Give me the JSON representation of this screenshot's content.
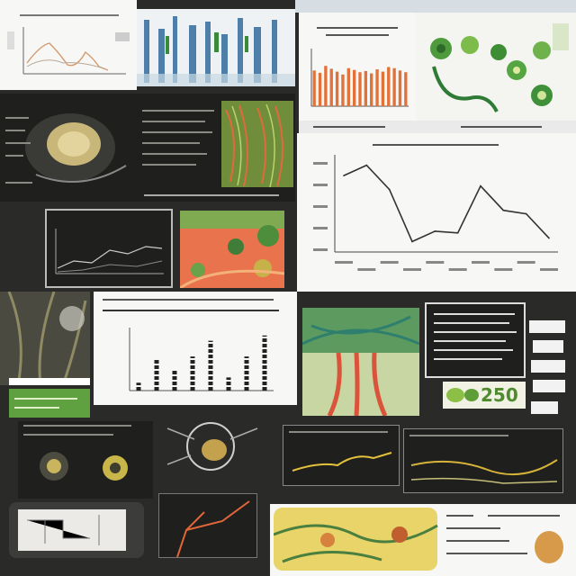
{
  "texts": {
    "top_left_caption": "",
    "center_title": "",
    "line_chart_title": "",
    "bar_panel_caption": "",
    "olive_badge_number": "250"
  },
  "colors": {
    "background": "#2a2a28",
    "line_stroke": "#333333",
    "bar_orange": "#e0723a",
    "olive_green": "#8bbf45"
  },
  "chart_data": [
    {
      "type": "line",
      "title": "",
      "xlabel": "",
      "ylabel": "",
      "x": [
        1,
        2,
        3,
        4,
        5,
        6,
        7,
        8,
        9,
        10
      ],
      "y": [
        300,
        330,
        260,
        110,
        140,
        135,
        270,
        200,
        190,
        120
      ],
      "ylim": [
        80,
        360
      ],
      "grid": false
    },
    {
      "type": "bar",
      "title": "",
      "values": [
        62,
        58,
        70,
        65,
        60,
        55,
        66,
        63,
        59,
        61,
        57,
        64,
        60,
        68,
        66,
        62,
        59
      ],
      "ylim": [
        0,
        100
      ]
    },
    {
      "type": "scatter",
      "title": "",
      "values": [
        1.5,
        6.0,
        4.0,
        6.5,
        9.5,
        2.5,
        6.5,
        10.5
      ],
      "ylim": [
        0,
        12
      ]
    }
  ]
}
